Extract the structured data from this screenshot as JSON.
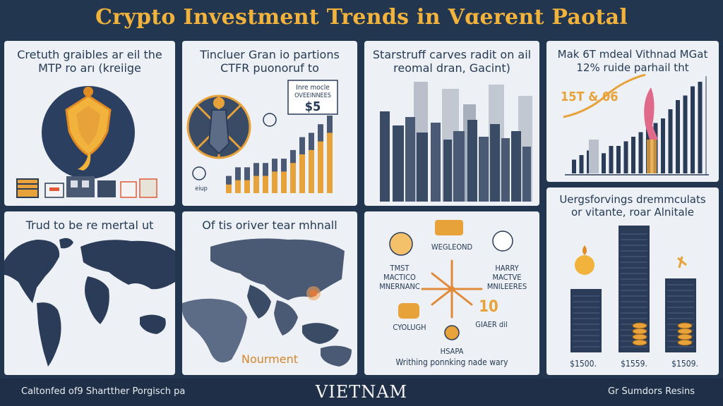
{
  "title": "Crypto Investment Trends in Vɑerent Paotal",
  "panels": {
    "p1": {
      "caption_line1": "Cretuth graibles ar eil the",
      "caption_line2": "MTP ro arı (kreiige"
    },
    "p2": {
      "caption_line1": "Tincluer Gran io partions",
      "caption_line2": "CTFR puonoruf to",
      "box_line1": "Inre mocle",
      "box_line2": "OVEEINNEES",
      "box_value": "$5",
      "icon_label": "eiup"
    },
    "p3": {
      "caption_line1": "Starstruff carves radit on ail",
      "caption_line2": "reomal dran, Gacint)"
    },
    "p4": {
      "caption_line1": "Mak 6T mdeal Vithnad MGat",
      "caption_line2": "12% ruide parhail tht",
      "value_label": "15T & 06"
    },
    "p5": {
      "caption": "Trud to be re mertal ut"
    },
    "p6": {
      "caption": "Of tis oriver tear mhnall",
      "bottom_label": "Nourment"
    },
    "p7": {
      "node_top": "WEGLEOND",
      "node_left_1": "TMST",
      "node_left_2": "MACTICO",
      "node_left_3": "MNERNANC",
      "node_right_1": "HARRY",
      "node_right_2": "MACTVE",
      "node_right_3": "MNILEERES",
      "node_bottom_left": "CYOLUGH",
      "node_bottom_right_num": "10",
      "node_bottom_right": "GIAER dil",
      "node_bottom": "HSAPA",
      "bottom_caption": "Writhing ponnking nade wary"
    },
    "p8": {
      "caption_line1": "Uergsforvings dremmculats",
      "caption_line2": "or vitante, roar Alnitale",
      "bar_labels": [
        "$1500.",
        "$1559.",
        "$1509."
      ]
    }
  },
  "footer": {
    "left": "Caltonfed of9 Shartther Porgisch pa",
    "center": "VIETNAM",
    "right": "Gr Sumdors Resins"
  },
  "colors": {
    "background": "#233650",
    "panel": "#edf0f4",
    "accent": "#f2b33d",
    "navy": "#2a3c58",
    "orange": "#e8a23a"
  },
  "chart_data": [
    {
      "type": "bar",
      "panel": "p2",
      "series": [
        {
          "values": [
            2,
            3,
            3,
            3.5,
            3.5,
            4,
            4,
            5,
            6.5,
            7,
            8,
            9
          ]
        },
        {
          "values": [
            1,
            1.5,
            1.5,
            2,
            2,
            2.5,
            2.5,
            3.5,
            4.5,
            5,
            6,
            7
          ]
        }
      ]
    },
    {
      "type": "bar",
      "panel": "p4",
      "values": [
        1.5,
        2,
        2.5,
        2.5,
        2.2,
        3,
        3,
        3.5,
        4,
        4.5,
        5,
        5.5,
        6,
        7,
        8,
        8.5,
        9.5,
        10
      ]
    },
    {
      "type": "bar",
      "panel": "p8",
      "categories": [
        "$1500.",
        "$1559.",
        "$1509."
      ],
      "values": [
        3,
        6,
        3.5
      ]
    }
  ]
}
